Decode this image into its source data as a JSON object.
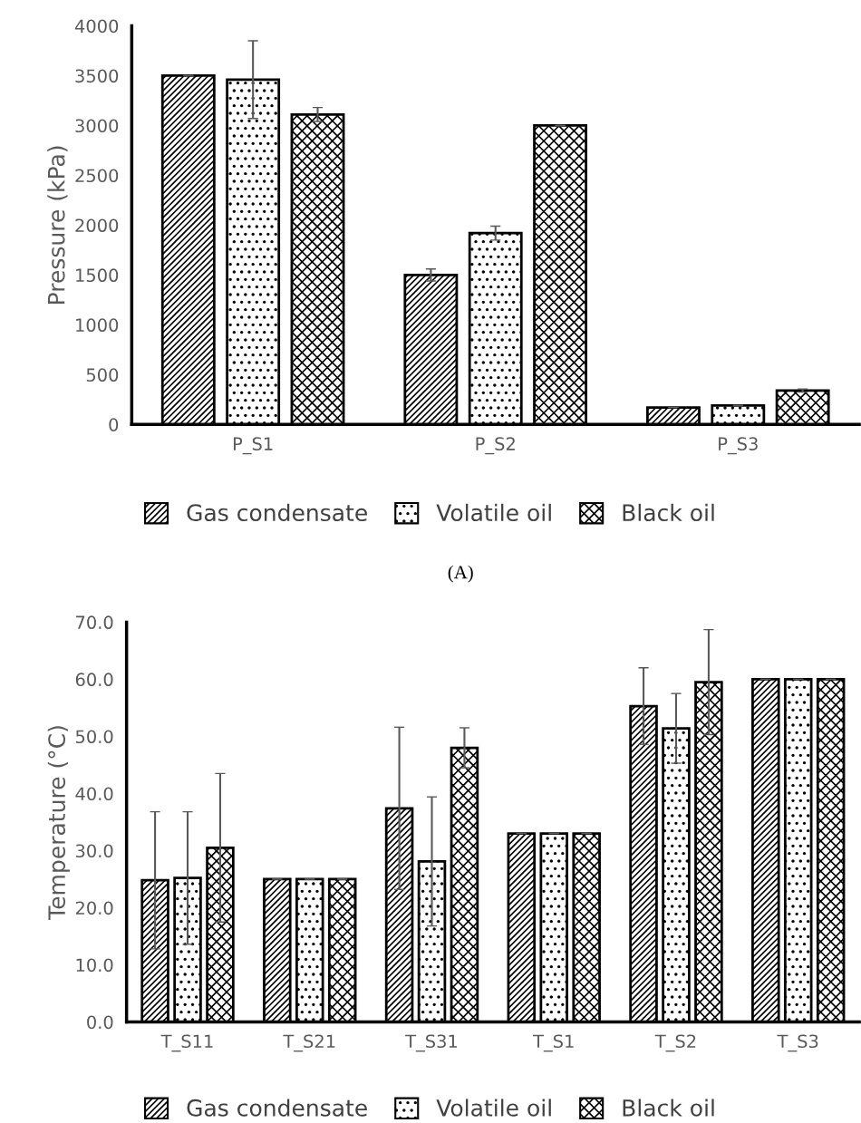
{
  "chart_data": [
    {
      "type": "bar",
      "ylabel": "Pressure (kPa)",
      "categories": [
        "P_S1",
        "P_S2",
        "P_S3"
      ],
      "ylim": [
        0,
        4000
      ],
      "yticks": [
        0,
        500,
        1000,
        1500,
        2000,
        2500,
        3000,
        3500,
        4000
      ],
      "grid": false,
      "legend": "bottom",
      "annotations": [
        "(A)"
      ],
      "series": [
        {
          "name": "Gas condensate",
          "color": "#000000",
          "values": [
            3500,
            1500,
            170
          ],
          "errors": [
            null,
            60,
            null
          ]
        },
        {
          "name": "Volatile oil",
          "color": "#000000",
          "values": [
            3460,
            1920,
            190
          ],
          "errors": [
            390,
            70,
            null
          ]
        },
        {
          "name": "Black oil",
          "color": "#000000",
          "values": [
            3110,
            3000,
            340
          ],
          "errors": [
            70,
            null,
            15
          ]
        }
      ]
    },
    {
      "type": "bar",
      "ylabel": "Temperature (°C)",
      "categories": [
        "T_S11",
        "T_S21",
        "T_S31",
        "T_S1",
        "T_S2",
        "T_S3"
      ],
      "ylim": [
        0,
        70
      ],
      "yticks": [
        {
          "value": 0,
          "label": "0.0"
        },
        {
          "value": 10,
          "label": "10.0"
        },
        {
          "value": 20,
          "label": "20.0"
        },
        {
          "value": 30,
          "label": "30.0"
        },
        {
          "value": 40,
          "label": "40.0"
        },
        {
          "value": 50,
          "label": "50.0"
        },
        {
          "value": 60,
          "label": "60.0"
        },
        {
          "value": 70,
          "label": "70.0"
        }
      ],
      "grid": false,
      "legend": "bottom",
      "series": [
        {
          "name": "Gas condensate",
          "color": "#000000",
          "values": [
            24.8,
            25,
            37.4,
            33,
            55.3,
            60
          ],
          "errors": [
            12,
            null,
            14.2,
            null,
            6.7,
            null
          ]
        },
        {
          "name": "Volatile oil",
          "color": "#000000",
          "values": [
            25.2,
            25,
            28.1,
            33,
            51.4,
            60
          ],
          "errors": [
            11.6,
            null,
            11.3,
            null,
            6.1,
            null
          ]
        },
        {
          "name": "Black oil",
          "color": "#000000",
          "values": [
            30.5,
            25,
            48,
            33,
            59.5,
            60
          ],
          "errors": [
            13,
            null,
            3.5,
            null,
            9.2,
            null
          ]
        }
      ]
    }
  ]
}
